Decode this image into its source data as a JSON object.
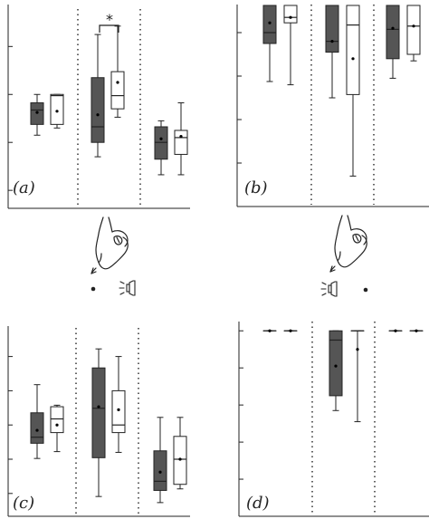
{
  "colors": {
    "dark": "#555555",
    "light": "#ffffff",
    "line": "#222222"
  },
  "icons": {
    "pointer": "hand-pointer-icon",
    "dot": "dot-icon",
    "speaker": "speaker-icon"
  },
  "chart_data": [
    {
      "type": "boxplot",
      "panel_label": "(a)",
      "groups": [
        {
          "series": [
            {
              "style": "dark",
              "whisker_low": 6.1,
              "q1": 7.0,
              "median": 8.2,
              "q3": 8.8,
              "whisker_high": 9.5,
              "mean": 8.0
            },
            {
              "style": "light",
              "whisker_low": 6.7,
              "q1": 7.0,
              "median": 9.4,
              "q3": 9.5,
              "whisker_high": 9.5,
              "mean": 8.1
            }
          ]
        },
        {
          "series": [
            {
              "style": "dark",
              "whisker_low": 4.3,
              "q1": 5.5,
              "median": 6.8,
              "q3": 10.9,
              "whisker_high": 14.5,
              "mean": 7.8
            },
            {
              "style": "light",
              "whisker_low": 7.6,
              "q1": 8.3,
              "median": 9.4,
              "q3": 11.4,
              "whisker_high": 15.2,
              "mean": 10.5
            }
          ]
        },
        {
          "series": [
            {
              "style": "dark",
              "whisker_low": 2.8,
              "q1": 4.1,
              "median": 5.5,
              "q3": 6.8,
              "whisker_high": 7.3,
              "mean": 5.8
            },
            {
              "style": "light",
              "whisker_low": 2.8,
              "q1": 4.5,
              "median": 5.9,
              "q3": 6.5,
              "whisker_high": 8.8,
              "mean": 6.0
            }
          ]
        }
      ],
      "significance": {
        "group": 1,
        "text": "*"
      },
      "ylim": [
        0,
        17
      ],
      "yticks": [
        1.5,
        5.5,
        9.5,
        13.5
      ]
    },
    {
      "type": "boxplot",
      "panel_label": "(b)",
      "groups": [
        {
          "series": [
            {
              "style": "dark",
              "whisker_low": 11.5,
              "q1": 15.0,
              "median": 16.0,
              "q3": 18.5,
              "whisker_high": 18.5,
              "mean": 16.9
            },
            {
              "style": "light",
              "whisker_low": 11.2,
              "q1": 16.9,
              "median": 17.4,
              "q3": 18.5,
              "whisker_high": 18.5,
              "mean": 17.4
            }
          ]
        },
        {
          "series": [
            {
              "style": "dark",
              "whisker_low": 10.0,
              "q1": 14.2,
              "median": 15.2,
              "q3": 18.5,
              "whisker_high": 18.5,
              "mean": 15.2
            },
            {
              "style": "light",
              "whisker_low": 2.8,
              "q1": 10.3,
              "median": 16.7,
              "q3": 18.5,
              "whisker_high": 18.5,
              "mean": 13.6
            }
          ]
        },
        {
          "series": [
            {
              "style": "dark",
              "whisker_low": 11.8,
              "q1": 13.6,
              "median": 16.3,
              "q3": 18.5,
              "whisker_high": 18.5,
              "mean": 16.4
            },
            {
              "style": "light",
              "whisker_low": 13.4,
              "q1": 14.0,
              "median": 16.6,
              "q3": 18.5,
              "whisker_high": 18.5,
              "mean": 16.6
            }
          ]
        }
      ],
      "ylim": [
        0,
        19
      ],
      "yticks": [
        4,
        8,
        12,
        16
      ]
    },
    {
      "type": "boxplot",
      "panel_label": "(c)",
      "groups": [
        {
          "series": [
            {
              "style": "dark",
              "whisker_low": 7.6,
              "q1": 9.6,
              "median": 10.4,
              "q3": 13.6,
              "whisker_high": 17.3,
              "mean": 11.3
            },
            {
              "style": "light",
              "whisker_low": 8.5,
              "q1": 11.0,
              "median": 12.8,
              "q3": 14.4,
              "whisker_high": 14.6,
              "mean": 12.0
            }
          ]
        },
        {
          "series": [
            {
              "style": "dark",
              "whisker_low": 2.6,
              "q1": 7.7,
              "median": 14.2,
              "q3": 19.5,
              "whisker_high": 22.0,
              "mean": 14.4
            },
            {
              "style": "light",
              "whisker_low": 8.4,
              "q1": 11.0,
              "median": 12.0,
              "q3": 16.5,
              "whisker_high": 21.0,
              "mean": 14.0
            }
          ]
        },
        {
          "series": [
            {
              "style": "dark",
              "whisker_low": 1.8,
              "q1": 3.4,
              "median": 4.6,
              "q3": 8.6,
              "whisker_high": 13.0,
              "mean": 5.8
            },
            {
              "style": "light",
              "whisker_low": 3.6,
              "q1": 4.2,
              "median": 7.5,
              "q3": 10.5,
              "whisker_high": 13.0,
              "mean": 7.5
            }
          ]
        }
      ],
      "ylim": [
        0,
        25
      ],
      "yticks": [
        3,
        7.5,
        12,
        16.5,
        21
      ]
    },
    {
      "type": "boxplot",
      "panel_label": "(d)",
      "groups": [
        {
          "series": [
            {
              "style": "dark",
              "whisker_low": 20.0,
              "q1": 20.0,
              "median": 20.0,
              "q3": 20.0,
              "whisker_high": 20.0,
              "mean": 20.0
            },
            {
              "style": "light",
              "whisker_low": 20.0,
              "q1": 20.0,
              "median": 20.0,
              "q3": 20.0,
              "whisker_high": 20.0,
              "mean": 20.0
            }
          ]
        },
        {
          "series": [
            {
              "style": "dark",
              "whisker_low": 11.4,
              "q1": 13.0,
              "median": 19.0,
              "q3": 20.0,
              "whisker_high": 20.0,
              "mean": 16.2
            },
            {
              "style": "light",
              "whisker_low": 10.2,
              "q1": 20.0,
              "median": 20.0,
              "q3": 20.0,
              "whisker_high": 20.0,
              "mean": 18.0
            }
          ]
        },
        {
          "series": [
            {
              "style": "dark",
              "whisker_low": 20.0,
              "q1": 20.0,
              "median": 20.0,
              "q3": 20.0,
              "whisker_high": 20.0,
              "mean": 20.0
            },
            {
              "style": "light",
              "whisker_low": 20.0,
              "q1": 20.0,
              "median": 20.0,
              "q3": 20.0,
              "whisker_high": 20.0,
              "mean": 20.0
            }
          ]
        }
      ],
      "ylim": [
        0,
        21
      ],
      "yticks": [
        4,
        8,
        12,
        16,
        20
      ]
    }
  ]
}
